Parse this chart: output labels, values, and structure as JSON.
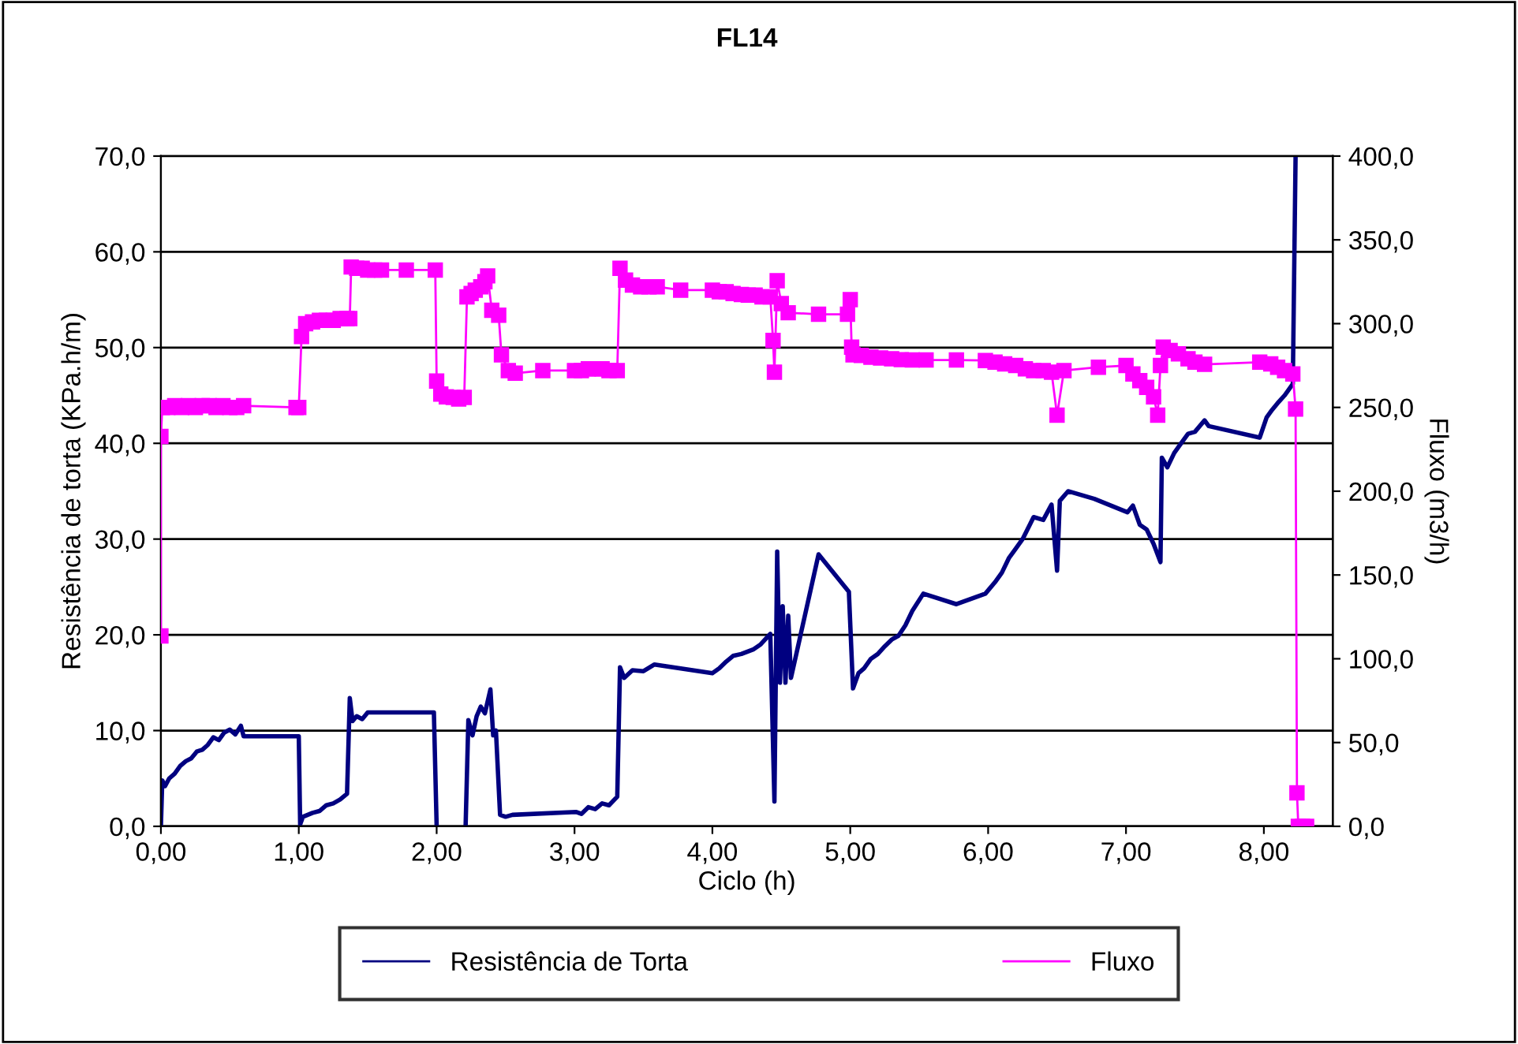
{
  "chart_data": {
    "type": "line",
    "title": "FL14",
    "xlabel": "Ciclo (h)",
    "ylabel": "Resistência de torta (KPa.h/m)",
    "y2label": "Fluxo (m3/h)",
    "xlim": [
      0,
      8.5
    ],
    "xticks": [
      {
        "value": 0,
        "label": "0,00"
      },
      {
        "value": 1,
        "label": "1,00"
      },
      {
        "value": 2,
        "label": "2,00"
      },
      {
        "value": 3,
        "label": "3,00"
      },
      {
        "value": 4,
        "label": "4,00"
      },
      {
        "value": 5,
        "label": "5,00"
      },
      {
        "value": 6,
        "label": "6,00"
      },
      {
        "value": 7,
        "label": "7,00"
      },
      {
        "value": 8,
        "label": "8,00"
      }
    ],
    "ylim": [
      0,
      70
    ],
    "yticks": [
      {
        "value": 0,
        "label": "0,0"
      },
      {
        "value": 10,
        "label": "10,0"
      },
      {
        "value": 20,
        "label": "20,0"
      },
      {
        "value": 30,
        "label": "30,0"
      },
      {
        "value": 40,
        "label": "40,0"
      },
      {
        "value": 50,
        "label": "50,0"
      },
      {
        "value": 60,
        "label": "60,0"
      },
      {
        "value": 70,
        "label": "70,0"
      }
    ],
    "y2lim": [
      0,
      400
    ],
    "y2ticks": [
      {
        "value": 0,
        "label": "0,0"
      },
      {
        "value": 50,
        "label": "50,0"
      },
      {
        "value": 100,
        "label": "100,0"
      },
      {
        "value": 150,
        "label": "150,0"
      },
      {
        "value": 200,
        "label": "200,0"
      },
      {
        "value": 250,
        "label": "250,0"
      },
      {
        "value": 300,
        "label": "300,0"
      },
      {
        "value": 350,
        "label": "350,0"
      },
      {
        "value": 400,
        "label": "400,0"
      }
    ],
    "grid": "y",
    "legend": "bottom",
    "series": [
      {
        "name": "Resistência de Torta",
        "color": "#000080",
        "marker": "none",
        "x": [
          0,
          0.01,
          0.03,
          0.06,
          0.1,
          0.14,
          0.18,
          0.22,
          0.26,
          0.3,
          0.34,
          0.38,
          0.42,
          0.46,
          0.5,
          0.54,
          0.58,
          0.6,
          1.0,
          1.01,
          1.03,
          1.1,
          1.15,
          1.2,
          1.25,
          1.3,
          1.35,
          1.37,
          1.39,
          1.42,
          1.46,
          1.5,
          1.55,
          1.98,
          2.0,
          2.1,
          2.21,
          2.23,
          2.26,
          2.29,
          2.32,
          2.35,
          2.39,
          2.41,
          2.43,
          2.46,
          2.5,
          2.55,
          3.01,
          3.05,
          3.1,
          3.15,
          3.2,
          3.25,
          3.31,
          3.33,
          3.36,
          3.42,
          3.5,
          3.58,
          4.0,
          4.05,
          4.1,
          4.15,
          4.21,
          4.3,
          4.35,
          4.42,
          4.45,
          4.47,
          4.49,
          4.51,
          4.53,
          4.55,
          4.57,
          4.77,
          4.99,
          5.02,
          5.06,
          5.1,
          5.15,
          5.2,
          5.25,
          5.3,
          5.35,
          5.4,
          5.45,
          5.53,
          5.77,
          5.98,
          6.05,
          6.1,
          6.15,
          6.2,
          6.25,
          6.33,
          6.4,
          6.46,
          6.5,
          6.52,
          6.58,
          6.77,
          7.01,
          7.05,
          7.1,
          7.15,
          7.2,
          7.25,
          7.26,
          7.3,
          7.35,
          7.4,
          7.45,
          7.5,
          7.57,
          7.6,
          7.97,
          8.02,
          8.06,
          8.1,
          8.15,
          8.21,
          8.23
        ],
        "values": [
          0,
          4.8,
          4.2,
          5.0,
          5.5,
          6.3,
          6.8,
          7.1,
          7.8,
          8.0,
          8.5,
          9.3,
          9.0,
          9.8,
          10.1,
          9.6,
          10.5,
          9.4,
          9.4,
          0.2,
          1.0,
          1.4,
          1.6,
          2.2,
          2.4,
          2.8,
          3.4,
          13.4,
          11.0,
          11.5,
          11.2,
          11.9,
          11.9,
          11.9,
          0,
          null,
          0,
          11.1,
          9.5,
          11.5,
          12.5,
          11.8,
          14.3,
          9.5,
          10.0,
          1.2,
          1.0,
          1.2,
          1.5,
          1.3,
          2.0,
          1.8,
          2.4,
          2.2,
          3.1,
          16.6,
          15.5,
          16.3,
          16.2,
          16.9,
          16.0,
          16.5,
          17.2,
          17.8,
          18.0,
          18.5,
          19.0,
          20.1,
          2.6,
          28.7,
          15.0,
          23.0,
          15.0,
          22.0,
          15.5,
          28.4,
          24.5,
          14.4,
          16.0,
          16.5,
          17.5,
          18.0,
          18.8,
          19.5,
          19.9,
          21.0,
          22.5,
          24.3,
          23.2,
          24.3,
          25.5,
          26.5,
          28.0,
          29.0,
          30.0,
          32.3,
          32.0,
          33.6,
          26.7,
          34.0,
          35.0,
          34.2,
          32.8,
          33.5,
          31.5,
          31.0,
          29.5,
          27.6,
          38.5,
          37.5,
          39.0,
          40.0,
          41.0,
          41.2,
          42.4,
          41.8,
          40.6,
          42.7,
          43.5,
          44.2,
          45.0,
          46.2,
          70
        ]
      },
      {
        "name": "Fluxo",
        "color": "#ff00ff",
        "marker": "square",
        "axis": "y2",
        "x": [
          0,
          0.0,
          0.01,
          0.05,
          0.1,
          0.15,
          0.2,
          0.25,
          0.3,
          0.35,
          0.4,
          0.45,
          0.5,
          0.55,
          0.6,
          0.98,
          1.0,
          1.02,
          1.05,
          1.1,
          1.15,
          1.2,
          1.25,
          1.3,
          1.35,
          1.37,
          1.38,
          1.42,
          1.46,
          1.5,
          1.55,
          1.6,
          1.78,
          1.99,
          2.0,
          2.03,
          2.07,
          2.12,
          2.16,
          2.2,
          2.22,
          2.25,
          2.28,
          2.32,
          2.35,
          2.37,
          2.4,
          2.45,
          2.47,
          2.52,
          2.57,
          2.77,
          3.0,
          3.05,
          3.1,
          3.15,
          3.2,
          3.25,
          3.31,
          3.33,
          3.37,
          3.42,
          3.48,
          3.54,
          3.6,
          3.77,
          4.0,
          4.05,
          4.1,
          4.15,
          4.21,
          4.26,
          4.31,
          4.36,
          4.42,
          4.44,
          4.45,
          4.47,
          4.5,
          4.55,
          4.77,
          4.98,
          5.0,
          5.01,
          5.02,
          5.08,
          5.15,
          5.22,
          5.3,
          5.37,
          5.45,
          5.55,
          5.77,
          5.98,
          6.05,
          6.12,
          6.2,
          6.27,
          6.33,
          6.4,
          6.46,
          6.5,
          6.55,
          6.8,
          7.0,
          7.05,
          7.1,
          7.15,
          7.2,
          7.23,
          7.25,
          7.27,
          7.32,
          7.38,
          7.45,
          7.5,
          7.57,
          7.97,
          8.05,
          8.1,
          8.15,
          8.21,
          8.23,
          8.24,
          8.25,
          8.28,
          8.31
        ],
        "values": [
          113.6,
          232.7,
          250,
          250,
          251,
          250,
          251,
          250,
          251,
          251,
          250,
          251,
          250,
          250,
          251,
          250,
          250,
          292.3,
          300,
          301,
          302,
          302,
          302,
          303,
          303,
          303,
          333.8,
          333,
          333,
          332,
          332,
          332,
          332,
          332,
          265.7,
          258,
          256.3,
          256,
          255,
          256,
          316,
          318,
          320,
          322,
          325,
          328.5,
          308,
          305,
          281.4,
          272,
          270.4,
          272,
          272,
          272,
          273,
          273,
          273,
          272,
          272,
          333,
          326,
          323,
          322,
          322,
          322,
          320,
          320,
          319,
          319,
          318,
          317.4,
          317,
          317,
          316,
          316,
          290,
          271,
          325.6,
          312,
          306.5,
          305.6,
          305.6,
          314.3,
          286,
          281.4,
          281,
          280,
          279.5,
          279,
          278.5,
          278.3,
          278.3,
          278.3,
          278,
          277,
          276,
          275,
          273,
          272,
          272,
          271,
          245.4,
          272,
          274,
          275,
          270,
          266,
          262,
          256.3,
          245.4,
          275,
          286,
          284,
          282,
          279,
          277,
          275.7,
          277,
          276,
          274,
          272,
          270,
          249,
          20,
          0,
          0,
          0
        ]
      }
    ]
  }
}
